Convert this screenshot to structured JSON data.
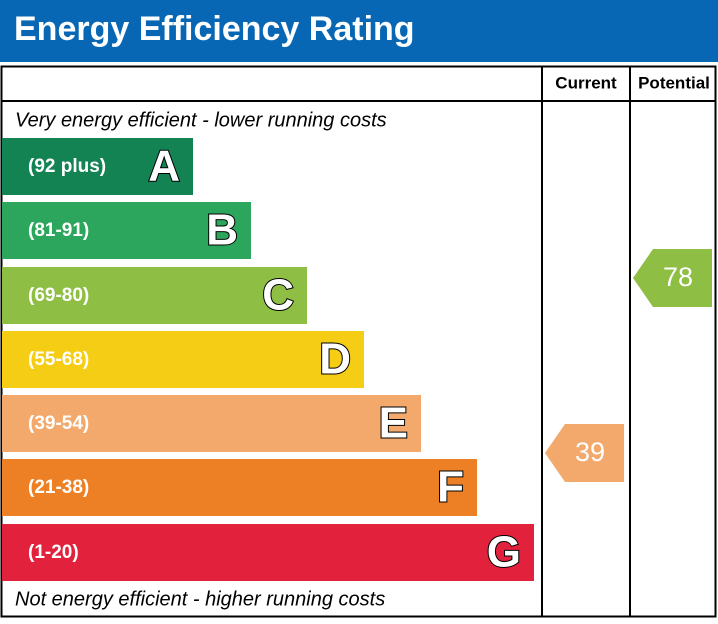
{
  "header": {
    "title": "Energy Efficiency Rating"
  },
  "columns": {
    "current": "Current",
    "potential": "Potential"
  },
  "top_note": "Very energy efficient - lower running costs",
  "bottom_note": "Not energy efficient - higher running costs",
  "bands": [
    {
      "range": "(92 plus)",
      "letter": "A",
      "color": "#138354"
    },
    {
      "range": "(81-91)",
      "letter": "B",
      "color": "#2ba65c"
    },
    {
      "range": "(69-80)",
      "letter": "C",
      "color": "#8ebe44"
    },
    {
      "range": "(55-68)",
      "letter": "D",
      "color": "#f6cd15"
    },
    {
      "range": "(39-54)",
      "letter": "E",
      "color": "#f2a96b"
    },
    {
      "range": "(21-38)",
      "letter": "F",
      "color": "#ed8025"
    },
    {
      "range": "(1-20)",
      "letter": "G",
      "color": "#e2213c"
    }
  ],
  "current": {
    "value": 39,
    "color": "#f2a96b"
  },
  "potential": {
    "value": 78,
    "color": "#8ebe44"
  }
}
